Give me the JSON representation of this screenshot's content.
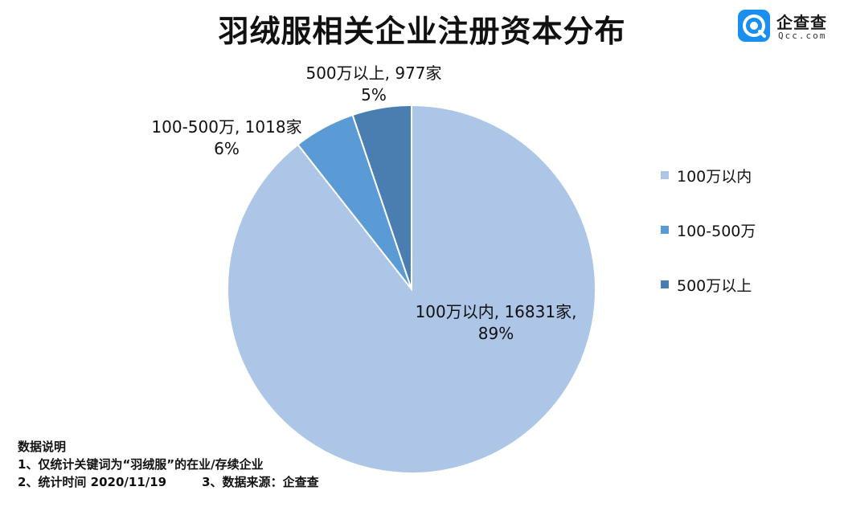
{
  "title": "羽绒服相关企业注册资本分布",
  "brand": {
    "name_cn": "企查查",
    "name_en": "Qcc.com",
    "icon": "qcc-logo-icon",
    "color": "#1a8ff0"
  },
  "chart_data": {
    "type": "pie",
    "title": "羽绒服相关企业注册资本分布",
    "legend_position": "right",
    "slices": [
      {
        "name": "100万以内",
        "value": 16831,
        "percent_label": "89%",
        "count_label": "16831家",
        "color": "#adc5e6"
      },
      {
        "name": "100-500万",
        "value": 1018,
        "percent_label": "6%",
        "count_label": "1018家",
        "color": "#5b9bd5"
      },
      {
        "name": "500万以上",
        "value": 977,
        "percent_label": "5%",
        "count_label": "977家",
        "color": "#4a7eb0"
      }
    ],
    "data_labels": [
      {
        "line1": "100万以内, 16831家,",
        "line2": "89%"
      },
      {
        "line1": "100-500万, 1018家",
        "line2": "6%"
      },
      {
        "line1": "500万以上, 977家",
        "line2": "5%"
      }
    ]
  },
  "notes": {
    "heading": "数据说明",
    "line1": "1、仅统计关键词为“羽绒服”的在业/存续企业",
    "line2a": "2、统计时间  2020/11/19",
    "line2b": "3、数据来源：企查查"
  }
}
